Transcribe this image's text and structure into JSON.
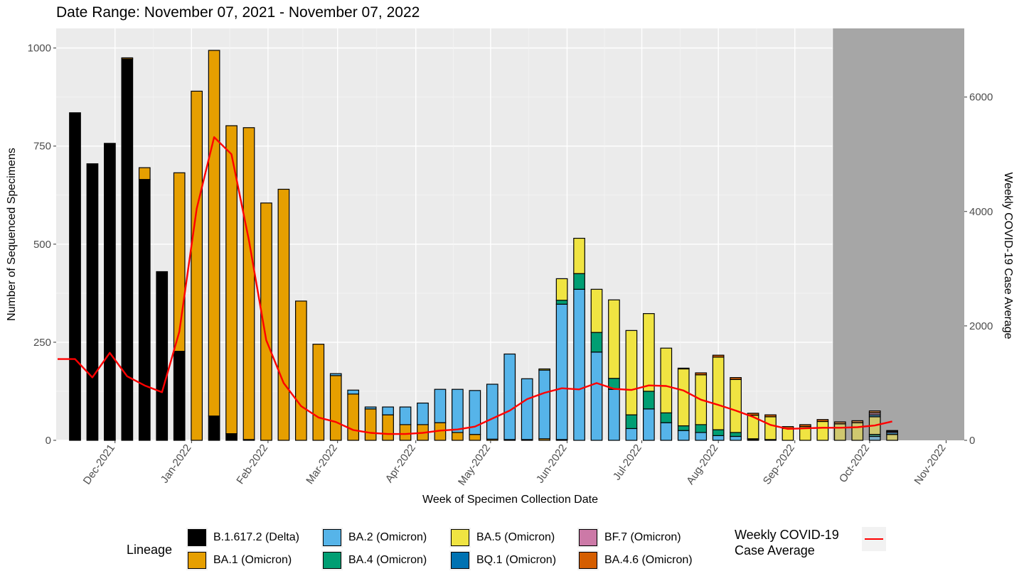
{
  "chart_data": {
    "type": "bar",
    "stacked": true,
    "title": "Date Range: November 07, 2021 - November 07, 2022",
    "xlabel": "Week of Specimen Collection Date",
    "ylabel": "Number of Sequenced Specimens",
    "y2label": "Weekly COVID-19 Case Average",
    "ylim": [
      0,
      1050
    ],
    "y2lim": [
      0,
      7200
    ],
    "yticks": [
      0,
      250,
      500,
      750,
      1000
    ],
    "y2ticks": [
      0,
      2000,
      4000,
      6000
    ],
    "grid": true,
    "legend_position": "bottom",
    "shaded_region_start_week": 44,
    "xticks": [
      {
        "label": "Dec-2021",
        "pos": 2.3
      },
      {
        "label": "Jan-2022",
        "pos": 6.7
      },
      {
        "label": "Feb-2022",
        "pos": 11.1
      },
      {
        "label": "Mar-2022",
        "pos": 15.1
      },
      {
        "label": "Apr-2022",
        "pos": 19.6
      },
      {
        "label": "May-2022",
        "pos": 23.9
      },
      {
        "label": "Jun-2022",
        "pos": 28.3
      },
      {
        "label": "Jul-2022",
        "pos": 32.6
      },
      {
        "label": "Aug-2022",
        "pos": 37.0
      },
      {
        "label": "Sep-2022",
        "pos": 41.4
      },
      {
        "label": "Oct-2022",
        "pos": 45.7
      },
      {
        "label": "Nov-2022",
        "pos": 50.1
      }
    ],
    "series": [
      {
        "name": "B.1.617.2 (Delta)",
        "color": "#000000",
        "values": [
          835,
          705,
          757,
          972,
          665,
          430,
          227,
          0,
          62,
          17,
          2,
          0,
          0,
          0,
          0,
          0,
          0,
          0,
          0,
          0,
          0,
          0,
          0,
          0,
          0,
          0,
          0,
          0,
          0,
          0,
          0,
          0,
          0,
          0,
          0,
          0,
          0,
          0,
          0,
          0,
          0,
          0,
          0,
          0,
          0,
          0,
          0,
          0
        ]
      },
      {
        "name": "BA.1 (Omicron)",
        "color": "#E69F00",
        "values": [
          0,
          0,
          0,
          3,
          30,
          0,
          455,
          890,
          932,
          785,
          795,
          605,
          640,
          355,
          245,
          165,
          118,
          80,
          65,
          40,
          40,
          45,
          20,
          15,
          3,
          2,
          2,
          4,
          2,
          0,
          0,
          0,
          0,
          0,
          0,
          0,
          0,
          0,
          0,
          0,
          0,
          0,
          0,
          0,
          0,
          0,
          0,
          0
        ]
      },
      {
        "name": "BA.2 (Omicron)",
        "color": "#56B4E9",
        "values": [
          0,
          0,
          0,
          0,
          0,
          0,
          0,
          0,
          0,
          0,
          0,
          0,
          0,
          0,
          0,
          5,
          10,
          5,
          20,
          45,
          55,
          85,
          110,
          112,
          140,
          218,
          155,
          175,
          345,
          385,
          225,
          130,
          30,
          80,
          45,
          25,
          20,
          12,
          10,
          2,
          0,
          0,
          0,
          0,
          0,
          0,
          10,
          0
        ]
      },
      {
        "name": "BA.4 (Omicron)",
        "color": "#009E73",
        "values": [
          0,
          0,
          0,
          0,
          0,
          0,
          0,
          0,
          0,
          0,
          0,
          0,
          0,
          0,
          0,
          0,
          0,
          0,
          0,
          0,
          0,
          0,
          0,
          0,
          0,
          0,
          0,
          0,
          10,
          40,
          50,
          28,
          35,
          45,
          25,
          12,
          20,
          15,
          10,
          2,
          2,
          0,
          0,
          0,
          0,
          0,
          5,
          0
        ]
      },
      {
        "name": "BA.5 (Omicron)",
        "color": "#F0E442",
        "values": [
          0,
          0,
          0,
          0,
          0,
          0,
          0,
          0,
          0,
          0,
          0,
          0,
          0,
          0,
          0,
          0,
          0,
          0,
          0,
          0,
          0,
          0,
          0,
          0,
          0,
          0,
          0,
          3,
          55,
          90,
          110,
          200,
          215,
          198,
          165,
          145,
          127,
          185,
          135,
          60,
          58,
          30,
          35,
          48,
          42,
          45,
          45,
          15
        ]
      },
      {
        "name": "BQ.1 (Omicron)",
        "color": "#0072B2",
        "values": [
          0,
          0,
          0,
          0,
          0,
          0,
          0,
          0,
          0,
          0,
          0,
          0,
          0,
          0,
          0,
          0,
          0,
          0,
          0,
          0,
          0,
          0,
          0,
          0,
          0,
          0,
          0,
          0,
          0,
          0,
          0,
          0,
          0,
          0,
          0,
          0,
          0,
          0,
          0,
          0,
          0,
          0,
          0,
          0,
          0,
          0,
          5,
          5
        ]
      },
      {
        "name": "BF.7 (Omicron)",
        "color": "#CC79A7",
        "values": [
          0,
          0,
          0,
          0,
          0,
          0,
          0,
          0,
          0,
          0,
          0,
          0,
          0,
          0,
          0,
          0,
          0,
          0,
          0,
          0,
          0,
          0,
          0,
          0,
          0,
          0,
          0,
          0,
          0,
          0,
          0,
          0,
          0,
          0,
          0,
          0,
          0,
          0,
          0,
          0,
          0,
          0,
          0,
          0,
          0,
          0,
          5,
          3
        ]
      },
      {
        "name": "BA.4.6 (Omicron)",
        "color": "#D55E00",
        "values": [
          0,
          0,
          0,
          0,
          0,
          0,
          0,
          0,
          0,
          0,
          0,
          0,
          0,
          0,
          0,
          0,
          0,
          0,
          0,
          0,
          0,
          0,
          0,
          0,
          0,
          0,
          0,
          0,
          0,
          0,
          0,
          0,
          0,
          0,
          0,
          2,
          5,
          5,
          5,
          5,
          5,
          5,
          5,
          5,
          5,
          5,
          5,
          2
        ]
      },
      {
        "name": "Weekly COVID-19 Case Average",
        "type": "line",
        "color": "#FF0000",
        "axis": "y2",
        "x": [
          -1,
          0,
          1,
          2,
          3,
          4,
          5,
          6,
          7,
          8,
          9,
          10,
          11,
          12,
          13,
          14,
          15,
          16,
          17,
          18,
          19,
          20,
          21,
          22,
          23,
          24,
          25,
          26,
          27,
          28,
          29,
          30,
          31,
          32,
          33,
          34,
          35,
          36,
          37,
          38,
          39,
          40,
          41,
          42,
          43,
          44,
          45,
          46,
          47
        ],
        "values": [
          1420,
          1420,
          1100,
          1530,
          1120,
          960,
          840,
          1900,
          4050,
          5300,
          5000,
          3500,
          1750,
          1000,
          600,
          400,
          320,
          180,
          130,
          110,
          110,
          130,
          170,
          190,
          240,
          380,
          520,
          720,
          830,
          910,
          890,
          1000,
          900,
          880,
          960,
          950,
          870,
          710,
          620,
          520,
          410,
          270,
          200,
          210,
          220,
          220,
          230,
          260,
          330
        ]
      }
    ]
  },
  "legend": {
    "title": "Lineage",
    "items": [
      {
        "label": "B.1.617.2 (Delta)",
        "color": "#000000"
      },
      {
        "label": "BA.1 (Omicron)",
        "color": "#E69F00"
      },
      {
        "label": "BA.2 (Omicron)",
        "color": "#56B4E9"
      },
      {
        "label": "BA.4 (Omicron)",
        "color": "#009E73"
      },
      {
        "label": "BA.5 (Omicron)",
        "color": "#F0E442"
      },
      {
        "label": "BQ.1 (Omicron)",
        "color": "#0072B2"
      },
      {
        "label": "BF.7 (Omicron)",
        "color": "#CC79A7"
      },
      {
        "label": "BA.4.6 (Omicron)",
        "color": "#D55E00"
      }
    ],
    "case_title_line1": "Weekly COVID-19",
    "case_title_line2": "Case Average",
    "case_color": "#FF0000"
  }
}
